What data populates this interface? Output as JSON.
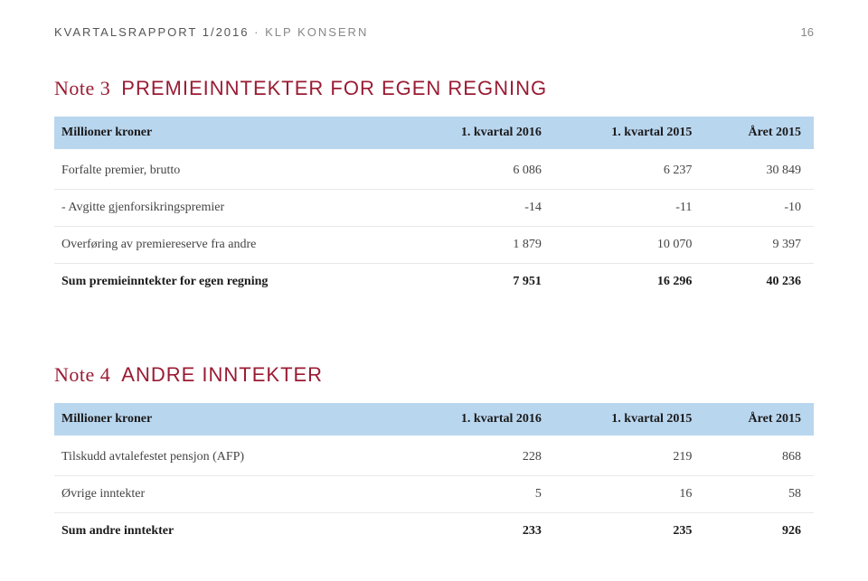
{
  "header": {
    "left_dark": "KVARTALSRAPPORT 1/2016",
    "dot": "·",
    "left_light": "KLP KONSERN",
    "page_number": "16"
  },
  "table1": {
    "title_prefix": "Note 3",
    "title_label": "PREMIEINNTEKTER FOR EGEN REGNING",
    "columns": [
      "Millioner kroner",
      "1. kvartal 2016",
      "1. kvartal 2015",
      "Året 2015"
    ],
    "rows": [
      {
        "label": "Forfalte premier, brutto",
        "c1": "6 086",
        "c2": "6 237",
        "c3": "30 849",
        "sum": false
      },
      {
        "label": "- Avgitte gjenforsikringspremier",
        "c1": "-14",
        "c2": "-11",
        "c3": "-10",
        "sum": false
      },
      {
        "label": "Overføring av premiereserve fra andre",
        "c1": "1 879",
        "c2": "10 070",
        "c3": "9 397",
        "sum": false
      },
      {
        "label": "Sum premieinntekter for egen regning",
        "c1": "7 951",
        "c2": "16 296",
        "c3": "40 236",
        "sum": true
      }
    ]
  },
  "table2": {
    "title_prefix": "Note 4",
    "title_label": "ANDRE INNTEKTER",
    "columns": [
      "Millioner kroner",
      "1. kvartal 2016",
      "1. kvartal 2015",
      "Året 2015"
    ],
    "rows": [
      {
        "label": "Tilskudd avtalefestet pensjon (AFP)",
        "c1": "228",
        "c2": "219",
        "c3": "868",
        "sum": false
      },
      {
        "label": "Øvrige inntekter",
        "c1": "5",
        "c2": "16",
        "c3": "58",
        "sum": false
      },
      {
        "label": "Sum andre inntekter",
        "c1": "233",
        "c2": "235",
        "c3": "926",
        "sum": true
      }
    ]
  }
}
